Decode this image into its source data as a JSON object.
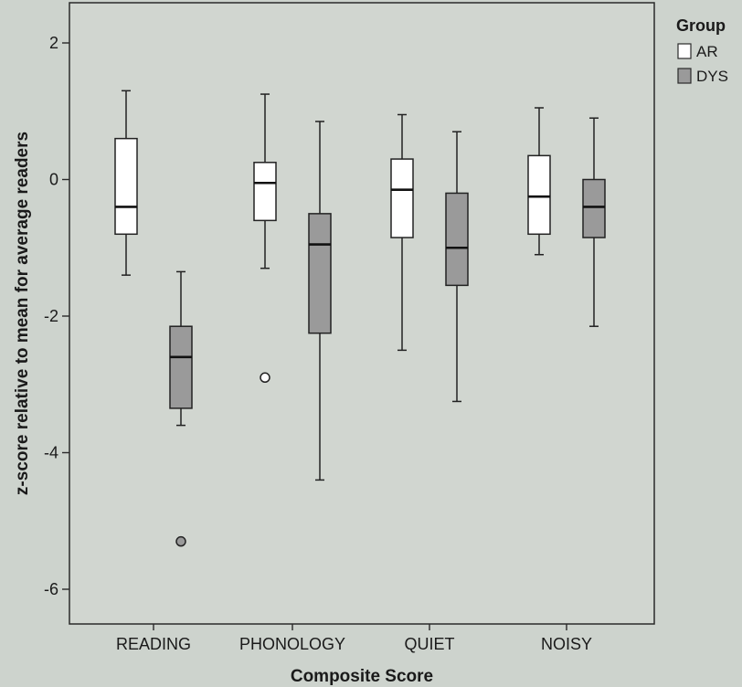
{
  "chart_data": {
    "type": "boxplot",
    "xlabel": "Composite Score",
    "ylabel": "z-score relative to mean for average readers",
    "ylim": [
      -6.3,
      2.5
    ],
    "yticks": [
      2,
      0,
      -2,
      -4,
      -6
    ],
    "ytick_labels": [
      "2",
      "0",
      "-2",
      "-4",
      "-6"
    ],
    "categories": [
      "READING",
      "PHONOLOGY",
      "QUIET",
      "NOISY"
    ],
    "legend": {
      "title": "Group",
      "position": "top-right-outside",
      "entries": [
        {
          "label": "AR",
          "color": "#ffffff"
        },
        {
          "label": "DYS",
          "color": "#9a9a9a"
        }
      ]
    },
    "series": [
      {
        "name": "AR",
        "color": "#ffffff",
        "boxes": [
          {
            "whisker_low": -1.4,
            "q1": -0.8,
            "median": -0.4,
            "q3": 0.6,
            "whisker_high": 1.3,
            "outliers": []
          },
          {
            "whisker_low": -1.3,
            "q1": -0.6,
            "median": -0.05,
            "q3": 0.25,
            "whisker_high": 1.25,
            "outliers": [
              -2.9
            ]
          },
          {
            "whisker_low": -2.5,
            "q1": -0.85,
            "median": -0.15,
            "q3": 0.3,
            "whisker_high": 0.95,
            "outliers": []
          },
          {
            "whisker_low": -1.1,
            "q1": -0.8,
            "median": -0.25,
            "q3": 0.35,
            "whisker_high": 1.05,
            "outliers": []
          }
        ]
      },
      {
        "name": "DYS",
        "color": "#9a9a9a",
        "boxes": [
          {
            "whisker_low": -3.6,
            "q1": -3.35,
            "median": -2.6,
            "q3": -2.15,
            "whisker_high": -1.35,
            "outliers": [
              -5.3
            ]
          },
          {
            "whisker_low": -4.4,
            "q1": -2.25,
            "median": -0.95,
            "q3": -0.5,
            "whisker_high": 0.85,
            "outliers": []
          },
          {
            "whisker_low": -3.25,
            "q1": -1.55,
            "median": -1.0,
            "q3": -0.2,
            "whisker_high": 0.7,
            "outliers": []
          },
          {
            "whisker_low": -2.15,
            "q1": -0.85,
            "median": -0.4,
            "q3": 0.0,
            "whisker_high": 0.9,
            "outliers": []
          }
        ]
      }
    ]
  }
}
